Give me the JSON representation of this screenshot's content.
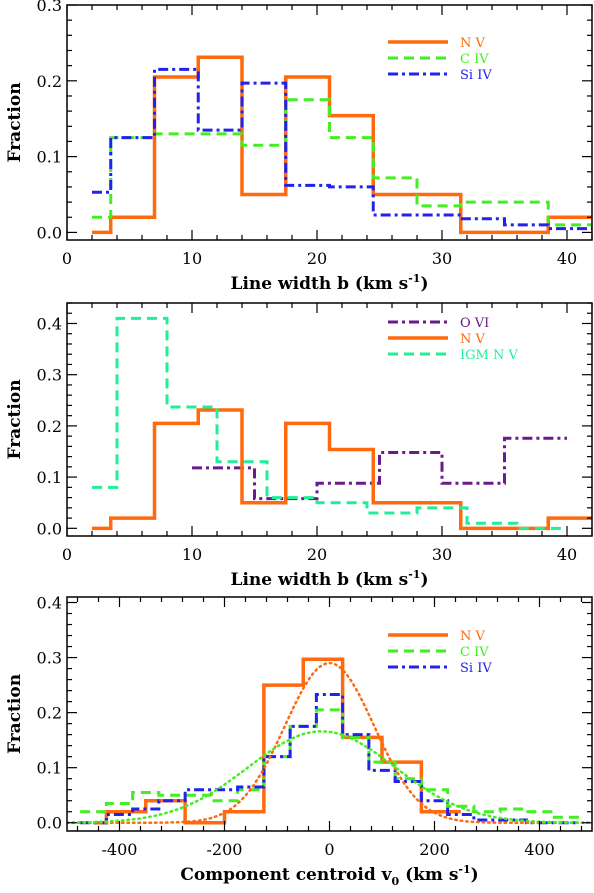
{
  "chart_data": [
    {
      "type": "line",
      "xlabel": "Line width b (km s",
      "xlabel_sup": "-1",
      "xlabel_tail": ")",
      "ylabel": "Fraction",
      "xlim": [
        0,
        42
      ],
      "ylim": [
        -0.01,
        0.3
      ],
      "xticks": [
        0,
        10,
        20,
        30,
        40
      ],
      "yticks": [
        0.0,
        0.1,
        0.2,
        0.3
      ],
      "ytick_labels": [
        "0.0",
        "0.1",
        "0.2",
        "0.3"
      ],
      "legend_position": "top-right",
      "series": [
        {
          "name": "N V",
          "color": "#ff6a0f",
          "dash": "solid",
          "width": 3.5,
          "edges": [
            2,
            3.5,
            7,
            10.5,
            14,
            17.5,
            21,
            24.5,
            28,
            31.5,
            35,
            38.5,
            42
          ],
          "values": [
            0.0,
            0.02,
            0.205,
            0.231,
            0.05,
            0.205,
            0.154,
            0.05,
            0.05,
            0.0,
            0.0,
            0.02
          ]
        },
        {
          "name": "C IV",
          "color": "#44ee22",
          "dash": "10,6",
          "width": 3,
          "edges": [
            2,
            3.5,
            7,
            10.5,
            14,
            17.5,
            21,
            24.5,
            28,
            31.5,
            35,
            38.5,
            42
          ],
          "values": [
            0.02,
            0.125,
            0.13,
            0.13,
            0.115,
            0.175,
            0.125,
            0.072,
            0.035,
            0.04,
            0.04,
            0.01
          ]
        },
        {
          "name": "Si IV",
          "color": "#2222ee",
          "dash": "10,4,3,4",
          "width": 3,
          "edges": [
            2,
            3.5,
            7,
            10.5,
            14,
            17.5,
            21,
            24.5,
            28,
            31.5,
            35,
            38.5,
            42
          ],
          "values": [
            0.053,
            0.125,
            0.215,
            0.135,
            0.197,
            0.062,
            0.06,
            0.023,
            0.023,
            0.018,
            0.01,
            0.005
          ]
        }
      ]
    },
    {
      "type": "line",
      "xlabel": "Line width b (km s",
      "xlabel_sup": "-1",
      "xlabel_tail": ")",
      "ylabel": "Fraction",
      "xlim": [
        0,
        42
      ],
      "ylim": [
        -0.015,
        0.44
      ],
      "xticks": [
        0,
        10,
        20,
        30,
        40
      ],
      "yticks": [
        0.0,
        0.1,
        0.2,
        0.3,
        0.4
      ],
      "ytick_labels": [
        "0.0",
        "0.1",
        "0.2",
        "0.3",
        "0.4"
      ],
      "legend_position": "top-right",
      "series": [
        {
          "name": "O VI",
          "color": "#6a1a8a",
          "dash": "10,4,3,4",
          "width": 3,
          "edges": [
            10,
            15,
            20,
            25,
            30,
            35,
            40
          ],
          "values": [
            0.118,
            0.058,
            0.088,
            0.148,
            0.088,
            0.176
          ]
        },
        {
          "name": "N V",
          "color": "#ff6a0f",
          "dash": "solid",
          "width": 3.5,
          "edges": [
            2,
            3.5,
            7,
            10.5,
            14,
            17.5,
            21,
            24.5,
            28,
            31.5,
            35,
            38.5,
            42
          ],
          "values": [
            0.0,
            0.02,
            0.205,
            0.231,
            0.05,
            0.205,
            0.154,
            0.05,
            0.05,
            0.0,
            0.0,
            0.02
          ]
        },
        {
          "name": "IGM N V",
          "color": "#22ee99",
          "dash": "10,6",
          "width": 3,
          "edges": [
            2,
            4,
            8,
            12,
            16,
            20,
            24,
            28,
            32,
            36,
            40
          ],
          "values": [
            0.08,
            0.41,
            0.237,
            0.13,
            0.06,
            0.05,
            0.03,
            0.04,
            0.01,
            0.0
          ]
        }
      ]
    },
    {
      "type": "line",
      "xlabel": "Component centroid v",
      "xlabel_sub": "0",
      "xlabel_tail": " (km s",
      "xlabel_sup": "-1",
      "xlabel_end": ")",
      "ylabel": "Fraction",
      "xlim": [
        -500,
        500
      ],
      "ylim": [
        -0.015,
        0.41
      ],
      "xticks": [
        -400,
        -200,
        0,
        200,
        400
      ],
      "yticks": [
        0.0,
        0.1,
        0.2,
        0.3,
        0.4
      ],
      "ytick_labels": [
        "0.0",
        "0.1",
        "0.2",
        "0.3",
        "0.4"
      ],
      "legend_position": "top-right",
      "series": [
        {
          "name": "N V",
          "color": "#ff6a0f",
          "dash": "solid",
          "width": 3.5,
          "edges": [
            -450,
            -425,
            -350,
            -275,
            -200,
            -125,
            -50,
            25,
            100,
            175,
            250
          ],
          "values": [
            0.0,
            0.02,
            0.04,
            0.0,
            0.02,
            0.25,
            0.297,
            0.155,
            0.11,
            0.02
          ]
        },
        {
          "name": "C IV",
          "color": "#44ee22",
          "dash": "10,6",
          "width": 3,
          "edges": [
            -475,
            -425,
            -375,
            -325,
            -275,
            -225,
            -175,
            -125,
            -75,
            -25,
            25,
            75,
            125,
            175,
            225,
            275,
            325,
            375,
            425,
            475
          ],
          "values": [
            0.02,
            0.035,
            0.055,
            0.05,
            0.05,
            0.04,
            0.06,
            0.12,
            0.175,
            0.205,
            0.155,
            0.11,
            0.08,
            0.06,
            0.03,
            0.02,
            0.025,
            0.02,
            0.01
          ]
        },
        {
          "name": "Si IV",
          "color": "#2222ee",
          "dash": "10,4,3,4",
          "width": 3,
          "edges": [
            -475,
            -425,
            -375,
            -325,
            -275,
            -225,
            -175,
            -125,
            -75,
            -25,
            25,
            75,
            125,
            175,
            225,
            275,
            325,
            375,
            425,
            475
          ],
          "values": [
            0.0,
            0.015,
            0.025,
            0.04,
            0.06,
            0.06,
            0.065,
            0.12,
            0.175,
            0.233,
            0.16,
            0.095,
            0.075,
            0.04,
            0.015,
            0.005,
            0.005,
            0.0,
            0.0
          ]
        }
      ],
      "fits": [
        {
          "color": "#ff6a0f",
          "amplitude": 0.29,
          "center": 0,
          "sigma": 85
        },
        {
          "color": "#44ee22",
          "amplitude": 0.166,
          "center": -15,
          "sigma": 140
        }
      ]
    }
  ]
}
